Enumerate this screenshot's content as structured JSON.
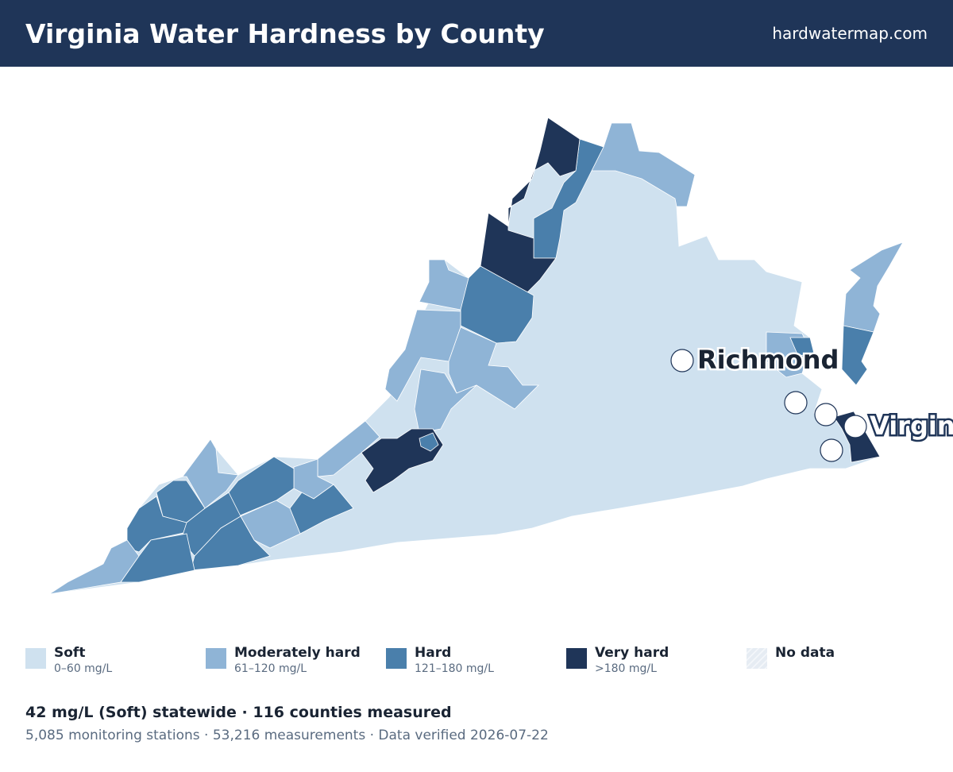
{
  "header": {
    "title": "Virginia Water Hardness by County",
    "site": "hardwatermap.com"
  },
  "map": {
    "cities": [
      {
        "name": "Richmond"
      },
      {
        "name": "Virginia Beach"
      }
    ]
  },
  "legend": [
    {
      "label": "Soft",
      "range": "0–60 mg/L",
      "color": "#cfe1ef"
    },
    {
      "label": "Moderately hard",
      "range": "61–120 mg/L",
      "color": "#8fb4d6"
    },
    {
      "label": "Hard",
      "range": "121–180 mg/L",
      "color": "#4a7fab"
    },
    {
      "label": "Very hard",
      "range": ">180 mg/L",
      "color": "#1f3558"
    },
    {
      "label": "No data",
      "color": "#e6ecf3"
    }
  ],
  "summary": {
    "headline": "42 mg/L (Soft) statewide · 116 counties measured",
    "details": "5,085 monitoring stations · 53,216 measurements · Data verified 2026-07-22"
  }
}
